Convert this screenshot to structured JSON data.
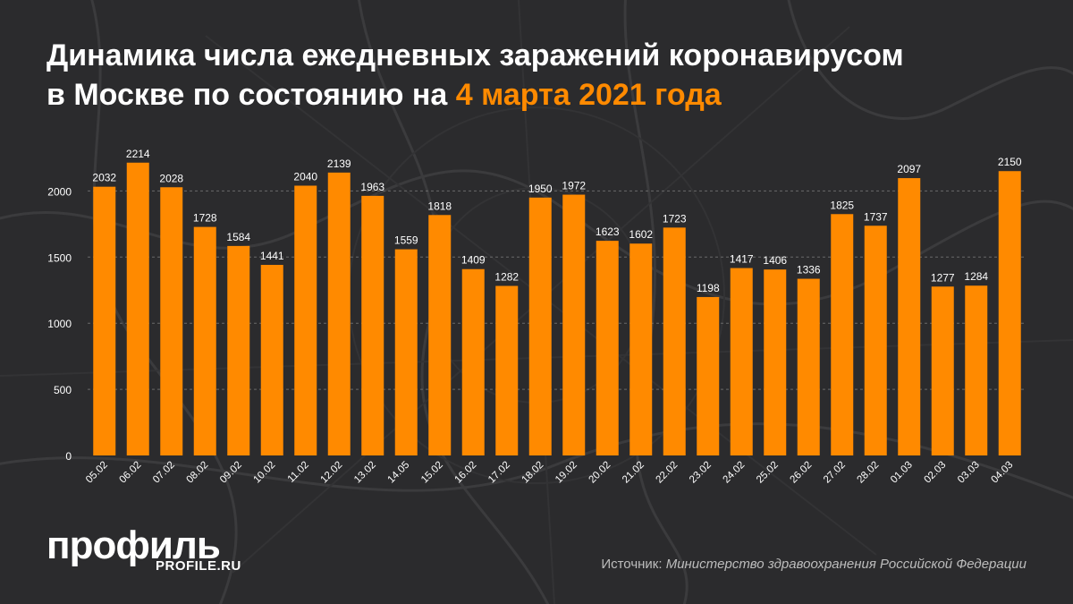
{
  "title": {
    "line1": "Динамика числа ежедневных заражений коронавирусом",
    "line2_prefix": "в Москве по состоянию на ",
    "line2_highlight": "4 марта 2021 года"
  },
  "colors": {
    "background": "#2b2b2d",
    "bar": "#ff8a00",
    "highlight": "#ff8a00",
    "text": "#ffffff"
  },
  "logo": {
    "name": "профиль",
    "site": "PROFILE.RU"
  },
  "source": {
    "label": "Источник: ",
    "value": "Министерство здравоохранения Российской Федерации"
  },
  "chart_data": {
    "type": "bar",
    "categories": [
      "05.02",
      "06.02",
      "07.02",
      "08.02",
      "09.02",
      "10.02",
      "11.02",
      "12.02",
      "13.02",
      "14.05",
      "15.02",
      "16.02",
      "17.02",
      "18.02",
      "19.02",
      "20.02",
      "21.02",
      "22.02",
      "23.02",
      "24.02",
      "25.02",
      "26.02",
      "27.02",
      "28.02",
      "01.03",
      "02.03",
      "03.03",
      "04.03"
    ],
    "values": [
      2032,
      2214,
      2028,
      1728,
      1584,
      1441,
      2040,
      2139,
      1963,
      1559,
      1818,
      1409,
      1282,
      1950,
      1972,
      1623,
      1602,
      1723,
      1198,
      1417,
      1406,
      1336,
      1825,
      1737,
      2097,
      1277,
      1284,
      2150
    ],
    "yticks": [
      0,
      500,
      1000,
      1500,
      2000
    ],
    "ylim": [
      0,
      2400
    ],
    "grid": true,
    "data_labels": true
  }
}
